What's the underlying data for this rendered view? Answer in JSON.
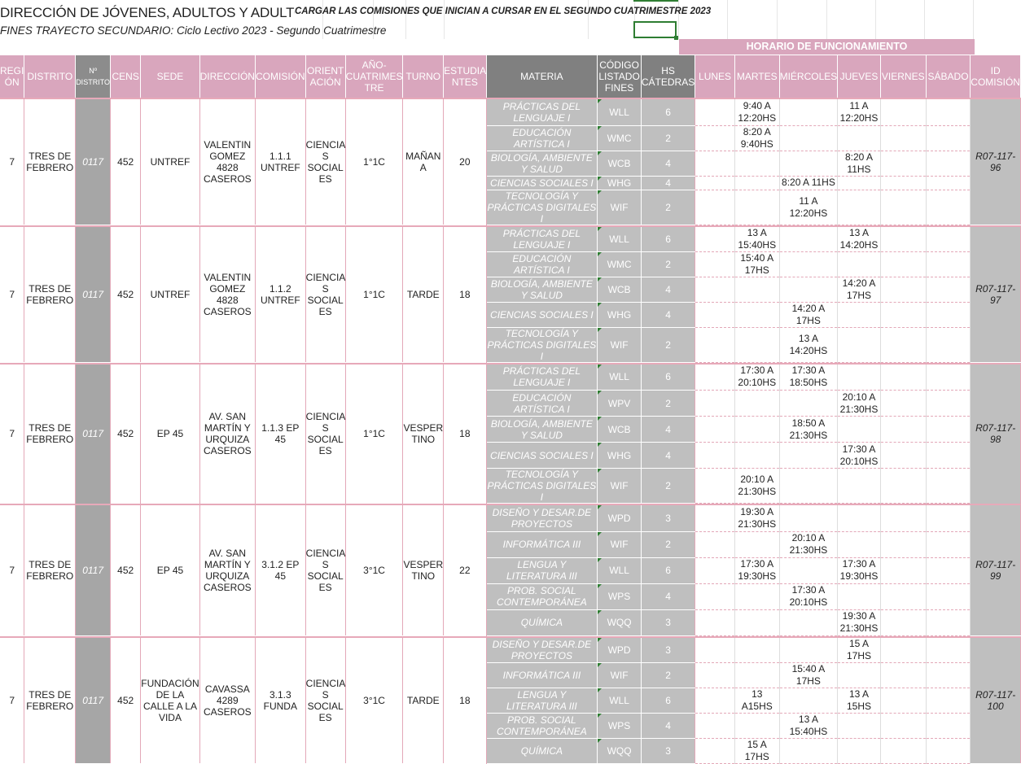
{
  "header": {
    "title": "DIRECCIÓN DE JÓVENES, ADULTOS Y ADULTOS MAYORES",
    "note": "CARGAR LAS COMISIONES QUE INICIAN A CURSAR EN EL SEGUNDO CUATRIMESTRE 2023",
    "subtitle": "FINES TRAYECTO SECUNDARIO: Ciclo Lectivo 2023 - Segundo Cuatrimestre",
    "horario_label": "HORARIO DE FUNCIONAMIENTO"
  },
  "columns": {
    "region": "REGI ÓN",
    "distrito": "DISTRITO",
    "n_distrito": "Nº DISTRITO",
    "cens": "CENS",
    "sede": "SEDE",
    "direccion": "DIRECCIÓN",
    "comision": "COMISIÓN",
    "orientacion": "ORIENT ACIÓN",
    "anio": "AÑO- CUATRIMES TRE",
    "turno": "TURNO",
    "estudiantes": "ESTUDIA NTES",
    "materia": "MATERIA",
    "codigo": "CÓDIGO LISTADO FINES",
    "hs": "HS CÁTEDRAS",
    "lunes": "LUNES",
    "martes": "MARTES",
    "miercoles": "MIÉRCOLES",
    "jueves": "JUEVES",
    "viernes": "VIERNES",
    "sabado": "SÁBADO",
    "id": "ID COMISIÓN"
  },
  "groups": [
    {
      "region": "7",
      "distrito": "TRES DE FEBRERO",
      "n_distrito": "0117",
      "cens": "452",
      "sede": "UNTREF",
      "direccion": "VALENTIN GOMEZ 4828 CASEROS",
      "comision": "1.1.1 UNTREF",
      "orientacion": "CIENCIA S SOCIAL ES",
      "anio": "1°1C",
      "turno": "MAÑAN A",
      "estudiantes": "20",
      "id": "R07-117-96",
      "subjects": [
        {
          "materia": "PRÁCTICAS DEL LENGUAJE I",
          "codigo": "WLL",
          "hs": "6",
          "lunes": "",
          "martes": "9:40 A 12:20HS",
          "miercoles": "",
          "jueves": "11 A 12:20HS",
          "viernes": "",
          "sabado": ""
        },
        {
          "materia": "EDUCACIÓN ARTÍSTICA I",
          "codigo": "WMC",
          "hs": "2",
          "lunes": "",
          "martes": "8:20 A 9:40HS",
          "miercoles": "",
          "jueves": "",
          "viernes": "",
          "sabado": ""
        },
        {
          "materia": "BIOLOGÍA, AMBIENTE Y SALUD",
          "codigo": "WCB",
          "hs": "4",
          "lunes": "",
          "martes": "",
          "miercoles": "",
          "jueves": "8:20 A 11HS",
          "viernes": "",
          "sabado": ""
        },
        {
          "materia": "CIENCIAS SOCIALES I",
          "codigo": "WHG",
          "hs": "4",
          "lunes": "",
          "martes": "",
          "miercoles": "8:20 A 11HS",
          "jueves": "",
          "viernes": "",
          "sabado": ""
        },
        {
          "materia": "TECNOLOGÍA Y PRÁCTICAS DIGITALES I",
          "codigo": "WIF",
          "hs": "2",
          "lunes": "",
          "martes": "",
          "miercoles": "11 A 12:20HS",
          "jueves": "",
          "viernes": "",
          "sabado": ""
        }
      ]
    },
    {
      "region": "7",
      "distrito": "TRES DE FEBRERO",
      "n_distrito": "0117",
      "cens": "452",
      "sede": "UNTREF",
      "direccion": "VALENTIN GOMEZ 4828 CASEROS",
      "comision": "1.1.2 UNTREF",
      "orientacion": "CIENCIA S SOCIAL ES",
      "anio": "1°1C",
      "turno": "TARDE",
      "estudiantes": "18",
      "id": "R07-117-97",
      "subjects": [
        {
          "materia": "PRÁCTICAS DEL LENGUAJE I",
          "codigo": "WLL",
          "hs": "6",
          "lunes": "",
          "martes": "13 A 15:40HS",
          "miercoles": "",
          "jueves": "13 A 14:20HS",
          "viernes": "",
          "sabado": ""
        },
        {
          "materia": "EDUCACIÓN ARTÍSTICA I",
          "codigo": "WMC",
          "hs": "2",
          "lunes": "",
          "martes": "15:40 A 17HS",
          "miercoles": "",
          "jueves": "",
          "viernes": "",
          "sabado": ""
        },
        {
          "materia": "BIOLOGÍA, AMBIENTE Y SALUD",
          "codigo": "WCB",
          "hs": "4",
          "lunes": "",
          "martes": "",
          "miercoles": "",
          "jueves": "14:20 A 17HS",
          "viernes": "",
          "sabado": ""
        },
        {
          "materia": "CIENCIAS SOCIALES I",
          "codigo": "WHG",
          "hs": "4",
          "lunes": "",
          "martes": "",
          "miercoles": "14:20 A 17HS",
          "jueves": "",
          "viernes": "",
          "sabado": ""
        },
        {
          "materia": "TECNOLOGÍA Y PRÁCTICAS DIGITALES I",
          "codigo": "WIF",
          "hs": "2",
          "lunes": "",
          "martes": "",
          "miercoles": "13 A 14:20HS",
          "jueves": "",
          "viernes": "",
          "sabado": ""
        }
      ]
    },
    {
      "region": "7",
      "distrito": "TRES DE FEBRERO",
      "n_distrito": "0117",
      "cens": "452",
      "sede": "EP 45",
      "direccion": "AV. SAN MARTÍN Y URQUIZA CASEROS",
      "comision": "1.1.3 EP 45",
      "orientacion": "CIENCIA S SOCIAL ES",
      "anio": "1°1C",
      "turno": "VESPER TINO",
      "estudiantes": "18",
      "id": "R07-117-98",
      "subjects": [
        {
          "materia": "PRÁCTICAS DEL LENGUAJE I",
          "codigo": "WLL",
          "hs": "6",
          "lunes": "",
          "martes": "17:30 A 20:10HS",
          "miercoles": "17:30 A 18:50HS",
          "jueves": "",
          "viernes": "",
          "sabado": ""
        },
        {
          "materia": "EDUCACIÓN ARTÍSTICA I",
          "codigo": "WPV",
          "hs": "2",
          "lunes": "",
          "martes": "",
          "miercoles": "",
          "jueves": "20:10 A 21:30HS",
          "viernes": "",
          "sabado": ""
        },
        {
          "materia": "BIOLOGÍA, AMBIENTE Y SALUD",
          "codigo": "WCB",
          "hs": "4",
          "lunes": "",
          "martes": "",
          "miercoles": "18:50 A 21:30HS",
          "jueves": "",
          "viernes": "",
          "sabado": ""
        },
        {
          "materia": "CIENCIAS SOCIALES I",
          "codigo": "WHG",
          "hs": "4",
          "lunes": "",
          "martes": "",
          "miercoles": "",
          "jueves": "17:30 A 20:10HS",
          "viernes": "",
          "sabado": ""
        },
        {
          "materia": "TECNOLOGÍA Y PRÁCTICAS DIGITALES I",
          "codigo": "WIF",
          "hs": "2",
          "lunes": "",
          "martes": "20:10 A 21:30HS",
          "miercoles": "",
          "jueves": "",
          "viernes": "",
          "sabado": ""
        }
      ]
    },
    {
      "region": "7",
      "distrito": "TRES DE FEBRERO",
      "n_distrito": "0117",
      "cens": "452",
      "sede": "EP 45",
      "direccion": "AV. SAN MARTÍN Y URQUIZA CASEROS",
      "comision": "3.1.2 EP 45",
      "orientacion": "CIENCIA S SOCIAL ES",
      "anio": "3°1C",
      "turno": "VESPER TINO",
      "estudiantes": "22",
      "id": "R07-117-99",
      "subjects": [
        {
          "materia": "DISEÑO Y DESAR.DE PROYECTOS",
          "codigo": "WPD",
          "hs": "3",
          "lunes": "",
          "martes": "19:30 A 21:30HS",
          "miercoles": "",
          "jueves": "",
          "viernes": "",
          "sabado": ""
        },
        {
          "materia": "INFORMÁTICA III",
          "codigo": "WIF",
          "hs": "2",
          "lunes": "",
          "martes": "",
          "miercoles": "20:10 A 21:30HS",
          "jueves": "",
          "viernes": "",
          "sabado": ""
        },
        {
          "materia": "LENGUA Y LITERATURA III",
          "codigo": "WLL",
          "hs": "6",
          "lunes": "",
          "martes": "17:30 A 19:30HS",
          "miercoles": "",
          "jueves": "17:30 A 19:30HS",
          "viernes": "",
          "sabado": ""
        },
        {
          "materia": "PROB. SOCIAL CONTEMPORÁNEA",
          "codigo": "WPS",
          "hs": "4",
          "lunes": "",
          "martes": "",
          "miercoles": "17:30 A 20:10HS",
          "jueves": "",
          "viernes": "",
          "sabado": ""
        },
        {
          "materia": "QUÍMICA",
          "codigo": "WQQ",
          "hs": "3",
          "lunes": "",
          "martes": "",
          "miercoles": "",
          "jueves": "19:30 A 21:30HS",
          "viernes": "",
          "sabado": ""
        }
      ]
    },
    {
      "region": "7",
      "distrito": "TRES DE FEBRERO",
      "n_distrito": "0117",
      "cens": "452",
      "sede": "FUNDACIÓN DE LA CALLE A LA VIDA",
      "direccion": "CAVASSA 4289 CASEROS",
      "comision": "3.1.3 FUNDA",
      "orientacion": "CIENCIA S SOCIAL ES",
      "anio": "3°1C",
      "turno": "TARDE",
      "estudiantes": "18",
      "id": "R07-117-100",
      "subjects": [
        {
          "materia": "DISEÑO Y DESAR.DE PROYECTOS",
          "codigo": "WPD",
          "hs": "3",
          "lunes": "",
          "martes": "",
          "miercoles": "",
          "jueves": "15 A 17HS",
          "viernes": "",
          "sabado": ""
        },
        {
          "materia": "INFORMÁTICA III",
          "codigo": "WIF",
          "hs": "2",
          "lunes": "",
          "martes": "",
          "miercoles": "15:40 A 17HS",
          "jueves": "",
          "viernes": "",
          "sabado": ""
        },
        {
          "materia": "LENGUA Y LITERATURA III",
          "codigo": "WLL",
          "hs": "6",
          "lunes": "",
          "martes": "13 A15HS",
          "miercoles": "",
          "jueves": "13 A 15HS",
          "viernes": "",
          "sabado": ""
        },
        {
          "materia": "PROB. SOCIAL CONTEMPORÁNEA",
          "codigo": "WPS",
          "hs": "4",
          "lunes": "",
          "martes": "",
          "miercoles": "13 A 15:40HS",
          "jueves": "",
          "viernes": "",
          "sabado": ""
        },
        {
          "materia": "QUÍMICA",
          "codigo": "WQQ",
          "hs": "3",
          "lunes": "",
          "martes": "15 A 17HS",
          "miercoles": "",
          "jueves": "",
          "viernes": "",
          "sabado": ""
        }
      ]
    }
  ]
}
